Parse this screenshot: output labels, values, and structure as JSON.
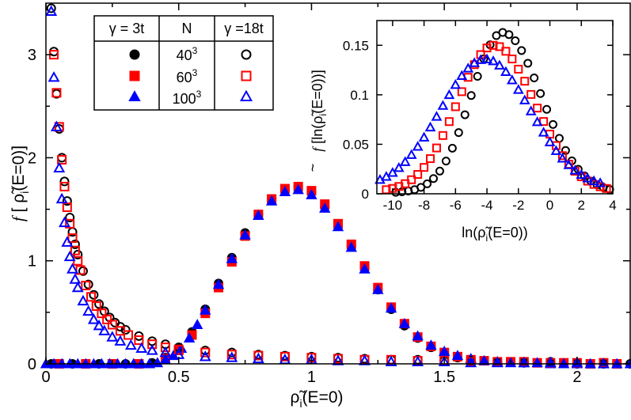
{
  "chart_data": [
    {
      "id": "main",
      "type": "scatter",
      "xlabel": "ρ̃i(E=0)",
      "xlabel_parts": {
        "prefix": "ρ̃",
        "sub": "i",
        "suffix": "(E=0)"
      },
      "ylabel": "f [ ρ̃i(E=0)]",
      "ylabel_parts": {
        "f": "f",
        "open": "[ ",
        "rho": "ρ̃",
        "sub": "i",
        "suffix": "(E=0)]"
      },
      "xlim": [
        0,
        2.2
      ],
      "ylim": [
        0,
        3.5
      ],
      "xticks": [
        0,
        0.5,
        1,
        1.5,
        2
      ],
      "xtick_labels": [
        "0",
        "0.5",
        "1",
        "1.5",
        "2"
      ],
      "yticks": [
        0,
        1,
        2,
        3
      ],
      "ytick_labels": [
        "0",
        "1",
        "2",
        "3"
      ],
      "grid": false,
      "legend": {
        "placement": "top-left",
        "headers": [
          "γ = 3t",
          "N",
          "γ =18t"
        ],
        "rows": [
          {
            "N_base": "40",
            "N_exp": "3",
            "color": "#000000",
            "filled_marker": "circle",
            "open_marker": "circle"
          },
          {
            "N_base": "60",
            "N_exp": "3",
            "color": "#ff0000",
            "filled_marker": "square",
            "open_marker": "square"
          },
          {
            "N_base": "100",
            "N_exp": "3",
            "color": "#0000ff",
            "filled_marker": "triangle",
            "open_marker": "triangle"
          }
        ]
      },
      "series": [
        {
          "name": "γ = 3t, N = 40³",
          "color": "#000000",
          "marker": "circle",
          "filled": true,
          "x": [
            0.02,
            0.1,
            0.2,
            0.3,
            0.4,
            0.45,
            0.5,
            0.55,
            0.6,
            0.65,
            0.7,
            0.75,
            0.8,
            0.85,
            0.9,
            0.95,
            1.0,
            1.05,
            1.1,
            1.15,
            1.2,
            1.25,
            1.3,
            1.35,
            1.4,
            1.45,
            1.5,
            1.55,
            1.6,
            1.7,
            1.8,
            1.9,
            2.0,
            2.1,
            2.2
          ],
          "y": [
            0.0,
            0.0,
            0.0,
            0.0,
            0.01,
            0.06,
            0.15,
            0.31,
            0.53,
            0.78,
            1.03,
            1.27,
            1.45,
            1.6,
            1.69,
            1.72,
            1.66,
            1.52,
            1.35,
            1.14,
            0.93,
            0.72,
            0.53,
            0.37,
            0.25,
            0.16,
            0.1,
            0.06,
            0.04,
            0.02,
            0.01,
            0.01,
            0.0,
            0.0,
            0.0
          ]
        },
        {
          "name": "γ = 3t, N = 60³",
          "color": "#ff0000",
          "marker": "square",
          "filled": true,
          "x": [
            0.05,
            0.15,
            0.25,
            0.35,
            0.45,
            0.5,
            0.55,
            0.6,
            0.65,
            0.7,
            0.75,
            0.8,
            0.85,
            0.9,
            0.95,
            1.0,
            1.05,
            1.1,
            1.15,
            1.2,
            1.25,
            1.3,
            1.35,
            1.4,
            1.45,
            1.5,
            1.55,
            1.6,
            1.65,
            1.75,
            1.85,
            1.95,
            2.05,
            2.15
          ],
          "y": [
            0.0,
            0.0,
            0.0,
            0.0,
            0.05,
            0.13,
            0.28,
            0.49,
            0.74,
            0.99,
            1.24,
            1.45,
            1.6,
            1.7,
            1.72,
            1.68,
            1.55,
            1.36,
            1.16,
            0.95,
            0.74,
            0.55,
            0.39,
            0.26,
            0.17,
            0.11,
            0.07,
            0.04,
            0.03,
            0.02,
            0.01,
            0.01,
            0.0,
            0.0
          ]
        },
        {
          "name": "γ = 3t, N = 100³",
          "color": "#0000ff",
          "marker": "triangle",
          "filled": true,
          "x": [
            0.0,
            0.03,
            0.06,
            0.09,
            0.12,
            0.15,
            0.18,
            0.21,
            0.24,
            0.27,
            0.3,
            0.33,
            0.36,
            0.39,
            0.42,
            0.45,
            0.48,
            0.51,
            0.54,
            0.57,
            0.6,
            0.65,
            0.7,
            0.75,
            0.8,
            0.85,
            0.9,
            0.95,
            1.0,
            1.05,
            1.1,
            1.15,
            1.2,
            1.25,
            1.3,
            1.35,
            1.4,
            1.45,
            1.5,
            1.55,
            1.6,
            1.65,
            1.7,
            1.75,
            1.8,
            1.85,
            1.9,
            1.95,
            2.0,
            2.05,
            2.1,
            2.15,
            2.2
          ],
          "y": [
            0.0,
            0.0,
            0.0,
            0.0,
            0.0,
            0.0,
            0.0,
            0.0,
            0.0,
            0.0,
            0.0,
            0.0,
            0.0,
            0.0,
            0.01,
            0.04,
            0.08,
            0.15,
            0.25,
            0.38,
            0.52,
            0.77,
            1.02,
            1.25,
            1.44,
            1.58,
            1.67,
            1.69,
            1.64,
            1.51,
            1.33,
            1.13,
            0.92,
            0.72,
            0.54,
            0.39,
            0.27,
            0.18,
            0.12,
            0.08,
            0.05,
            0.03,
            0.02,
            0.01,
            0.01,
            0.01,
            0.0,
            0.0,
            0.0,
            0.0,
            0.0,
            0.0,
            0.0
          ]
        },
        {
          "name": "γ =18t, N = 40³",
          "color": "#000000",
          "marker": "circle",
          "filled": false,
          "x": [
            0.02,
            0.03,
            0.04,
            0.05,
            0.06,
            0.07,
            0.08,
            0.09,
            0.1,
            0.11,
            0.12,
            0.14,
            0.16,
            0.18,
            0.2,
            0.22,
            0.24,
            0.26,
            0.28,
            0.3,
            0.35,
            0.4,
            0.45,
            0.5,
            0.6,
            0.7,
            0.8,
            0.9,
            1.0,
            1.1,
            1.2,
            1.3,
            1.4,
            1.5,
            1.6,
            1.7,
            1.8,
            1.9,
            2.0,
            2.1
          ],
          "y": [
            3.45,
            3.03,
            2.62,
            2.28,
            2.0,
            1.77,
            1.58,
            1.42,
            1.28,
            1.16,
            1.06,
            0.9,
            0.77,
            0.67,
            0.58,
            0.51,
            0.45,
            0.4,
            0.36,
            0.33,
            0.27,
            0.22,
            0.19,
            0.16,
            0.13,
            0.11,
            0.09,
            0.08,
            0.07,
            0.06,
            0.05,
            0.04,
            0.04,
            0.03,
            0.03,
            0.02,
            0.02,
            0.02,
            0.01,
            0.01
          ]
        },
        {
          "name": "γ =18t, N = 60³",
          "color": "#ff0000",
          "marker": "square",
          "filled": false,
          "x": [
            0.03,
            0.04,
            0.05,
            0.06,
            0.07,
            0.08,
            0.09,
            0.1,
            0.11,
            0.12,
            0.13,
            0.15,
            0.17,
            0.19,
            0.21,
            0.23,
            0.25,
            0.28,
            0.31,
            0.35,
            0.4,
            0.45,
            0.5,
            0.6,
            0.7,
            0.8,
            0.9,
            1.0,
            1.1,
            1.2,
            1.3,
            1.4,
            1.5,
            1.6,
            1.7,
            1.8,
            1.9,
            2.0,
            2.1
          ],
          "y": [
            3.0,
            2.63,
            2.3,
            1.98,
            1.72,
            1.52,
            1.36,
            1.22,
            1.1,
            1.0,
            0.91,
            0.76,
            0.65,
            0.56,
            0.49,
            0.43,
            0.38,
            0.32,
            0.28,
            0.23,
            0.19,
            0.16,
            0.14,
            0.11,
            0.09,
            0.08,
            0.07,
            0.06,
            0.05,
            0.04,
            0.04,
            0.03,
            0.03,
            0.02,
            0.02,
            0.02,
            0.01,
            0.01,
            0.01
          ]
        },
        {
          "name": "γ =18t, N = 100³",
          "color": "#0000ff",
          "marker": "triangle",
          "filled": false,
          "x": [
            0.02,
            0.03,
            0.04,
            0.05,
            0.06,
            0.07,
            0.08,
            0.09,
            0.1,
            0.11,
            0.12,
            0.14,
            0.16,
            0.18,
            0.2,
            0.22,
            0.25,
            0.28,
            0.32,
            0.36,
            0.4,
            0.45,
            0.5,
            0.6,
            0.7,
            0.8,
            0.9,
            1.0,
            1.1,
            1.2,
            1.3,
            1.4,
            1.5,
            1.6,
            1.7,
            1.8,
            1.9,
            2.0,
            2.1
          ],
          "y": [
            3.42,
            2.78,
            2.3,
            1.9,
            1.6,
            1.37,
            1.18,
            1.04,
            0.92,
            0.82,
            0.74,
            0.61,
            0.51,
            0.43,
            0.37,
            0.32,
            0.26,
            0.22,
            0.18,
            0.15,
            0.13,
            0.11,
            0.09,
            0.07,
            0.06,
            0.05,
            0.04,
            0.04,
            0.03,
            0.03,
            0.02,
            0.02,
            0.02,
            0.01,
            0.01,
            0.01,
            0.01,
            0.01,
            0.0
          ]
        }
      ]
    },
    {
      "id": "inset",
      "type": "scatter",
      "xlabel": "ln(ρ̃i(E=0))",
      "xlabel_parts": {
        "prefix": "ln(",
        "rho": "ρ̃",
        "sub": "i",
        "suffix": "(E=0))"
      },
      "ylabel": "f̃ [ln(ρ̃i(E=0))]",
      "ylabel_parts": {
        "f": "f",
        "tilde": "~",
        "open": " [ln(",
        "rho": "ρ̃",
        "sub": "i",
        "suffix": "(E=0))]"
      },
      "xlim": [
        -11,
        4
      ],
      "ylim": [
        0,
        0.175
      ],
      "xticks": [
        -10,
        -8,
        -6,
        -4,
        -2,
        0,
        2,
        4
      ],
      "xtick_labels": [
        "-10",
        "-8",
        "-6",
        "-4",
        "-2",
        "0",
        "2",
        "4"
      ],
      "yticks": [
        0,
        0.05,
        0.1,
        0.15
      ],
      "ytick_labels": [
        "0",
        "0.05",
        "0.1",
        "0.15"
      ],
      "grid": false,
      "series": [
        {
          "name": "N = 40³",
          "color": "#000000",
          "marker": "circle",
          "filled": false,
          "peak_x": -3.0,
          "peak_y": 0.163,
          "sigma_left": 2.0,
          "sigma_right": 2.45,
          "floor": 0.001,
          "x_min": -9.8,
          "x_max": 3.8,
          "step": 0.4
        },
        {
          "name": "N = 60³",
          "color": "#ff0000",
          "marker": "square",
          "filled": false,
          "peak_x": -3.55,
          "peak_y": 0.15,
          "sigma_left": 2.35,
          "sigma_right": 2.6,
          "floor": 0.002,
          "x_min": -10.4,
          "x_max": 3.6,
          "step": 0.4
        },
        {
          "name": "N = 100³",
          "color": "#0000ff",
          "marker": "triangle",
          "filled": false,
          "peak_x": -4.1,
          "peak_y": 0.136,
          "sigma_left": 2.85,
          "sigma_right": 2.85,
          "floor": 0.006,
          "x_min": -10.8,
          "x_max": 3.4,
          "step": 0.4
        }
      ]
    }
  ]
}
